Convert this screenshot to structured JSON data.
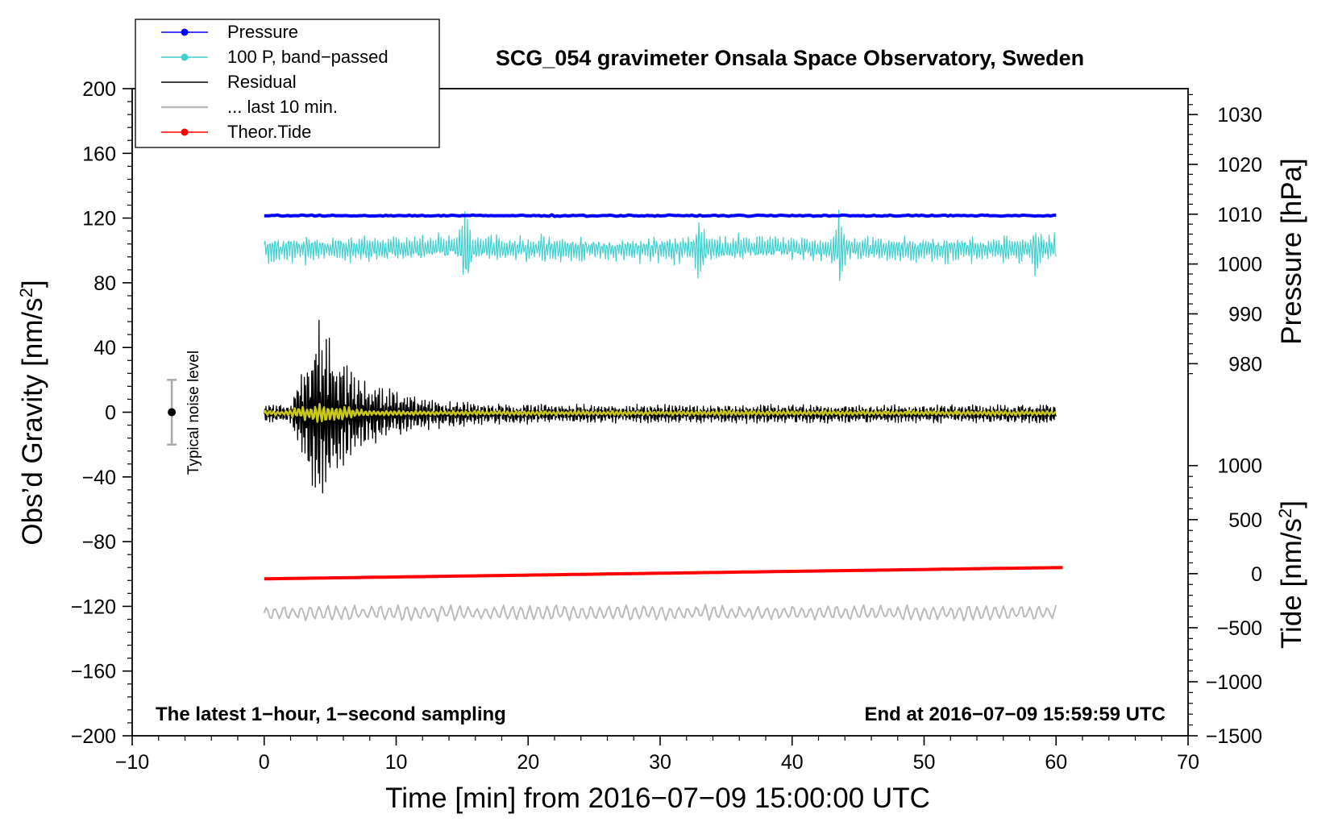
{
  "chart_data": {
    "type": "line",
    "title": "SCG_054 gravimeter Onsala Space Observatory, Sweden",
    "xlabel": "Time [min] from 2016−07−09 15:00:00 UTC",
    "ylabel_left": "Obs’d Gravity [nm/s",
    "ylabel_left_sup": "2",
    "ylabel_left_close": "]",
    "ylabel_right_pressure": "Pressure [hPa]",
    "ylabel_right_tide": "Tide [nm/s",
    "ylabel_right_tide_sup": "2",
    "ylabel_right_tide_close": "]",
    "xlim": [
      -10,
      70
    ],
    "ylim_left": [
      -200,
      200
    ],
    "x_ticks": [
      "−10",
      "0",
      "10",
      "20",
      "30",
      "40",
      "50",
      "60",
      "70"
    ],
    "x_tick_values": [
      -10,
      0,
      10,
      20,
      30,
      40,
      50,
      60,
      70
    ],
    "y_ticks_left": [
      "200",
      "160",
      "120",
      "80",
      "40",
      "0",
      "−40",
      "−80",
      "−120",
      "−160",
      "−200"
    ],
    "y_tick_values_left": [
      200,
      160,
      120,
      80,
      40,
      0,
      -40,
      -80,
      -120,
      -160,
      -200
    ],
    "pressure_axis": {
      "ticks": [
        "1030",
        "1020",
        "1010",
        "1000",
        "990",
        "980"
      ],
      "values": [
        1030,
        1020,
        1010,
        1000,
        990,
        980
      ],
      "map_to_left": [
        [
          1030,
          184
        ],
        [
          980,
          30
        ]
      ]
    },
    "tide_axis": {
      "ticks": [
        "1000",
        "500",
        "0",
        "−500",
        "−1000",
        "−1500"
      ],
      "values": [
        1000,
        500,
        0,
        -500,
        -1000,
        -1500
      ],
      "map_to_left": [
        [
          1000,
          -33
        ],
        [
          -1500,
          -200
        ]
      ]
    },
    "annotations": {
      "bottom_left": "The latest 1−hour, 1−second sampling",
      "bottom_right": "End at 2016−07−09 15:59:59 UTC",
      "noise_label": "Typical noise level"
    },
    "noise_bar": {
      "x": -7,
      "center": 0,
      "low": -20,
      "high": 20
    },
    "legend": {
      "position": "top-left",
      "entries": [
        {
          "label": "Pressure",
          "color": "#0000ff",
          "marker": true
        },
        {
          "label": "100 P, band−passed",
          "color": "#40d0d0",
          "marker": true
        },
        {
          "label": "Residual",
          "color": "#000000",
          "marker": false
        },
        {
          "label": "... last 10 min.",
          "color": "#bbbbbb",
          "marker": false
        },
        {
          "label": "Theor.Tide",
          "color": "#ff0000",
          "marker": true
        }
      ]
    },
    "series": [
      {
        "name": "Pressure",
        "color": "#0000ff",
        "x_range": [
          0,
          60
        ],
        "level_left": 121.5,
        "level_hpa": 1009.8,
        "noise": 0.6
      },
      {
        "name": "100 P, band−passed",
        "color": "#40d0d0",
        "x_range": [
          0,
          60
        ],
        "level_left": 101,
        "typical_amplitude": 8,
        "spikes": [
          {
            "x": 15.2,
            "amplitude": 30
          },
          {
            "x": 33,
            "amplitude": 26
          },
          {
            "x": 43.5,
            "amplitude": 26
          },
          {
            "x": 58.5,
            "amplitude": 20
          }
        ]
      },
      {
        "name": "Residual",
        "color": "#000000",
        "x_range": [
          0,
          60
        ],
        "level_left": 0,
        "typical_amplitude": 6,
        "event_peak": {
          "x": 4,
          "amplitude": 62
        }
      },
      {
        "name": "Residual (smoothed)",
        "color": "#c8c81a",
        "x_range": [
          0,
          60
        ],
        "level_left": 0,
        "typical_amplitude": 1.5
      },
      {
        "name": "... last 10 min.",
        "color": "#bbbbbb",
        "x_range": [
          0,
          60
        ],
        "level_left": -124,
        "typical_amplitude": 5
      },
      {
        "name": "Theor.Tide",
        "color": "#ff0000",
        "x_range": [
          0,
          60.5
        ],
        "left_values": [
          -103,
          -96
        ],
        "tide_nm_s2": [
          -30,
          55
        ]
      }
    ]
  }
}
